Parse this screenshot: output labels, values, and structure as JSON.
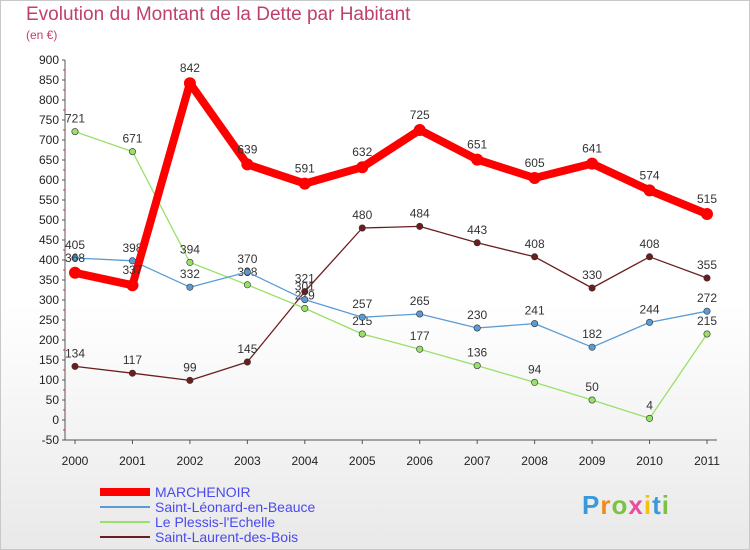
{
  "title": "Evolution du Montant de la Dette par Habitant",
  "unit_label": "(en €)",
  "brand": "Proxiti",
  "chart_data": {
    "type": "line",
    "title": "Evolution du Montant de la Dette par Habitant",
    "ylabel": "(en €)",
    "x": [
      2000,
      2001,
      2002,
      2003,
      2004,
      2005,
      2006,
      2007,
      2008,
      2009,
      2010,
      2011
    ],
    "ylim": [
      -50,
      900
    ],
    "yticks": [
      -50,
      0,
      50,
      100,
      150,
      200,
      250,
      300,
      350,
      400,
      450,
      500,
      550,
      600,
      650,
      700,
      750,
      800,
      850,
      900
    ],
    "grid": false,
    "legend_position": "bottom-left",
    "series": [
      {
        "name": "MARCHENOIR",
        "color": "#ff0000",
        "values": [
          368,
          337,
          842,
          639,
          591,
          632,
          725,
          651,
          605,
          641,
          574,
          515
        ]
      },
      {
        "name": "Saint-Léonard-en-Beauce",
        "color": "#5b9bd5",
        "values": [
          405,
          398,
          332,
          370,
          301,
          257,
          265,
          230,
          241,
          182,
          244,
          272
        ]
      },
      {
        "name": "Le Plessis-l'Echelle",
        "color": "#99e069",
        "values": [
          721,
          671,
          394,
          338,
          279,
          215,
          177,
          136,
          94,
          50,
          4,
          215
        ]
      },
      {
        "name": "Saint-Laurent-des-Bois",
        "color": "#6b1e1e",
        "values": [
          134,
          117,
          99,
          145,
          321,
          480,
          484,
          443,
          408,
          330,
          408,
          355
        ]
      }
    ]
  }
}
